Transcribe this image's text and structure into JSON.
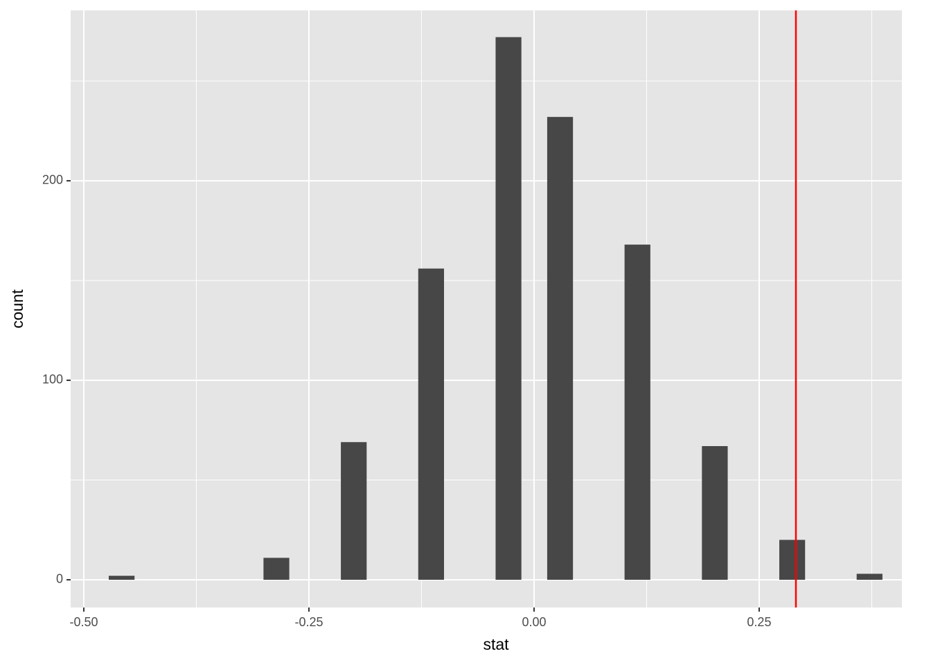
{
  "chart_data": {
    "type": "histogram",
    "x_label": "stat",
    "y_label": "count",
    "bins": [
      -0.4723,
      -0.44366,
      -0.41502,
      -0.38638,
      -0.35774,
      -0.3291,
      -0.30046,
      -0.27182,
      -0.24318,
      -0.21454,
      -0.1859,
      -0.15726,
      -0.12862,
      -0.09998,
      -0.07134,
      -0.0427,
      -0.01406,
      0.01458,
      0.04322,
      0.07186,
      0.1005,
      0.12914,
      0.15778,
      0.18642,
      0.21506,
      0.2437,
      0.27234,
      0.30098,
      0.32962,
      0.35826,
      0.3869
    ],
    "values": [
      2,
      0,
      0,
      0,
      0,
      0,
      11,
      0,
      0,
      69,
      0,
      0,
      156,
      0,
      0,
      272,
      0,
      232,
      0,
      0,
      168,
      0,
      0,
      67,
      0,
      0,
      20,
      0,
      0,
      3
    ],
    "color": "#474747",
    "vline": {
      "value": 0.2908,
      "color": "#ff0000"
    },
    "xlim": [
      -0.5146,
      0.4085
    ],
    "xticks": [
      {
        "value": -0.5,
        "label": "-0.50"
      },
      -0.25,
      {
        "value": 0,
        "label": "0.00"
      },
      0.25
    ],
    "x_minor_ticks": [
      -0.375,
      -0.125,
      0.125,
      0.375
    ],
    "ylim": [
      -13.9,
      285.4
    ],
    "yticks": [
      0,
      100,
      200
    ],
    "y_minor_ticks": [
      50,
      150,
      250
    ],
    "grid": true
  }
}
